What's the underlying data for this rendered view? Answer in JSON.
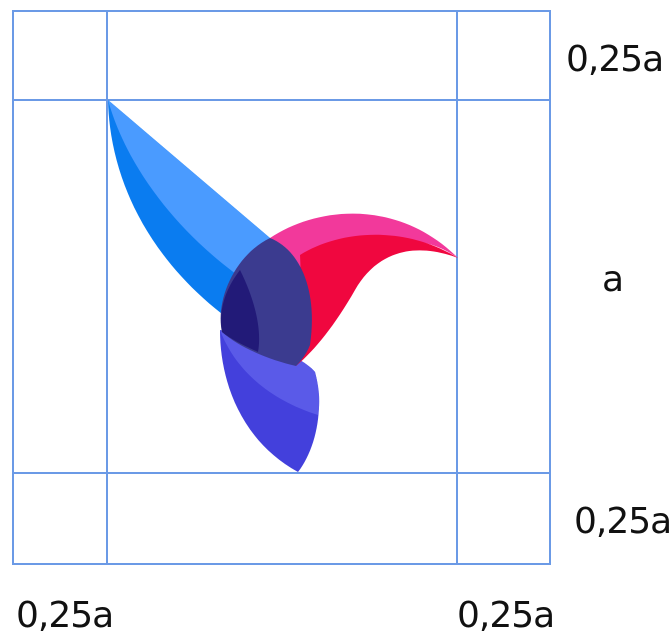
{
  "labels": {
    "right_top": "0,25a",
    "right_middle": "a",
    "right_bottom": "0,25a",
    "bottom_left": "0,25a",
    "bottom_right": "0,25a"
  },
  "colors": {
    "grid": "#6b9ae6",
    "wing_light_blue": "#4a9bff",
    "wing_blue": "#0a7cf0",
    "head_pink": "#f2399b",
    "beak_red": "#f0073f",
    "body_navy": "#3b3b8f",
    "body_dark": "#221a78",
    "tail_light": "#5a5ae8",
    "tail_dark": "#4340dc"
  }
}
